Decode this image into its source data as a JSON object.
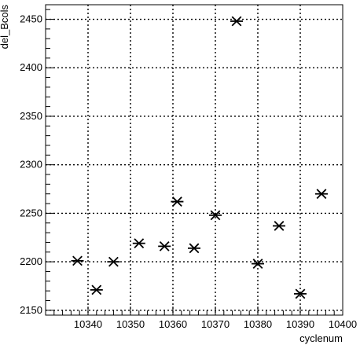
{
  "chart_data": {
    "type": "scatter",
    "title": "",
    "xlabel": "cyclenum",
    "ylabel": "del_Bcols",
    "xlim": [
      10330,
      10400
    ],
    "ylim": [
      2145,
      2465
    ],
    "grid": true,
    "marker": "asterisk",
    "color": "#000000",
    "x_ticks": [
      10340,
      10350,
      10360,
      10370,
      10380,
      10390,
      10400
    ],
    "y_ticks": [
      2150,
      2200,
      2250,
      2300,
      2350,
      2400,
      2450
    ],
    "x_tick_labels": [
      "10340",
      "10350",
      "10360",
      "10370",
      "10380",
      "10390",
      "10400"
    ],
    "y_tick_labels": [
      "2150",
      "2200",
      "2250",
      "2300",
      "2350",
      "2400",
      "2450"
    ],
    "points": [
      {
        "x": 10337.5,
        "y": 2201
      },
      {
        "x": 10342,
        "y": 2171
      },
      {
        "x": 10346,
        "y": 2200
      },
      {
        "x": 10352,
        "y": 2219
      },
      {
        "x": 10358,
        "y": 2216
      },
      {
        "x": 10361,
        "y": 2262
      },
      {
        "x": 10365,
        "y": 2214
      },
      {
        "x": 10370,
        "y": 2248
      },
      {
        "x": 10375,
        "y": 2448
      },
      {
        "x": 10380,
        "y": 2198
      },
      {
        "x": 10385,
        "y": 2237
      },
      {
        "x": 10390,
        "y": 2167
      },
      {
        "x": 10395,
        "y": 2270
      }
    ]
  }
}
